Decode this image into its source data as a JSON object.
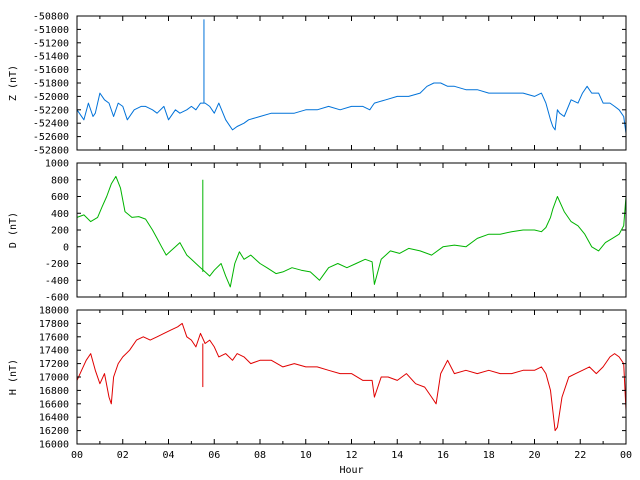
{
  "chart_data": [
    {
      "type": "line",
      "ylabel": "Z (nT)",
      "ylim": [
        -52800,
        -50800
      ],
      "yticks": [
        -50800,
        -51000,
        -51200,
        -51400,
        -51600,
        -51800,
        -52000,
        -52200,
        -52400,
        -52600,
        -52800
      ],
      "xlim": [
        0,
        24
      ],
      "color": "#0072d9",
      "series": [
        {
          "x": [
            0,
            0.3,
            0.5,
            0.7,
            0.8,
            1.0,
            1.2,
            1.4,
            1.6,
            1.8,
            2.0,
            2.2,
            2.5,
            2.8,
            3.0,
            3.3,
            3.5,
            3.8,
            4.0,
            4.3,
            4.5,
            4.8,
            5.0,
            5.2,
            5.4,
            5.6,
            5.8,
            6.0,
            6.2,
            6.5,
            6.8,
            7.0,
            7.3,
            7.5,
            8.0,
            8.5,
            9.0,
            9.5,
            10.0,
            10.5,
            11.0,
            11.5,
            12.0,
            12.5,
            12.8,
            12.9,
            13.0,
            13.5,
            14.0,
            14.5,
            15.0,
            15.3,
            15.6,
            15.9,
            16.2,
            16.5,
            17.0,
            17.5,
            18.0,
            18.5,
            19.0,
            19.5,
            20.0,
            20.3,
            20.5,
            20.7,
            20.8,
            20.9,
            21.0,
            21.1,
            21.3,
            21.6,
            21.9,
            22.1,
            22.3,
            22.5,
            22.8,
            23.0,
            23.3,
            23.5,
            23.7,
            23.9,
            24.0
          ],
          "values": [
            -52200,
            -52350,
            -52100,
            -52300,
            -52250,
            -51950,
            -52050,
            -52100,
            -52300,
            -52100,
            -52150,
            -52350,
            -52200,
            -52150,
            -52150,
            -52200,
            -52250,
            -52150,
            -52350,
            -52200,
            -52250,
            -52200,
            -52150,
            -52200,
            -52100,
            -52100,
            -52150,
            -52250,
            -52100,
            -52350,
            -52500,
            -52450,
            -52400,
            -52350,
            -52300,
            -52250,
            -52250,
            -52250,
            -52200,
            -52200,
            -52150,
            -52200,
            -52150,
            -52150,
            -52200,
            -52150,
            -52100,
            -52050,
            -52000,
            -52000,
            -51950,
            -51850,
            -51800,
            -51800,
            -51850,
            -51850,
            -51900,
            -51900,
            -51950,
            -51950,
            -51950,
            -51950,
            -52000,
            -51950,
            -52100,
            -52350,
            -52450,
            -52500,
            -52200,
            -52250,
            -52300,
            -52050,
            -52100,
            -51950,
            -51850,
            -51950,
            -51950,
            -52100,
            -52100,
            -52150,
            -52200,
            -52300,
            -52550
          ]
        }
      ],
      "spike": {
        "x": 5.55,
        "value": -50850
      }
    },
    {
      "type": "line",
      "ylabel": "D (nT)",
      "ylim": [
        -600,
        1000
      ],
      "yticks": [
        1000,
        800,
        600,
        400,
        200,
        0,
        -200,
        -400,
        -600
      ],
      "xlim": [
        0,
        24
      ],
      "color": "#00b400",
      "series": [
        {
          "x": [
            0,
            0.3,
            0.6,
            0.9,
            1.1,
            1.3,
            1.5,
            1.7,
            1.9,
            2.1,
            2.4,
            2.7,
            3.0,
            3.3,
            3.5,
            3.7,
            3.9,
            4.1,
            4.3,
            4.5,
            4.8,
            5.0,
            5.2,
            5.4,
            5.6,
            5.8,
            6.0,
            6.3,
            6.5,
            6.7,
            6.9,
            7.1,
            7.3,
            7.6,
            8.0,
            8.3,
            8.7,
            9.0,
            9.4,
            9.8,
            10.2,
            10.6,
            11.0,
            11.4,
            11.8,
            12.2,
            12.6,
            12.9,
            13.0,
            13.3,
            13.7,
            14.1,
            14.5,
            15.0,
            15.5,
            16.0,
            16.5,
            17.0,
            17.5,
            18.0,
            18.5,
            19.0,
            19.5,
            20.0,
            20.3,
            20.5,
            20.7,
            20.8,
            21.0,
            21.3,
            21.6,
            21.9,
            22.2,
            22.5,
            22.8,
            23.1,
            23.4,
            23.7,
            23.9,
            24.0
          ],
          "values": [
            350,
            380,
            300,
            350,
            480,
            600,
            750,
            840,
            700,
            420,
            350,
            360,
            330,
            200,
            100,
            0,
            -100,
            -50,
            0,
            50,
            -100,
            -150,
            -200,
            -250,
            -300,
            -350,
            -280,
            -200,
            -350,
            -480,
            -200,
            -60,
            -150,
            -100,
            -200,
            -250,
            -320,
            -300,
            -250,
            -280,
            -300,
            -400,
            -250,
            -200,
            -250,
            -200,
            -150,
            -180,
            -450,
            -150,
            -50,
            -80,
            -20,
            -50,
            -100,
            0,
            20,
            0,
            100,
            150,
            150,
            180,
            200,
            200,
            180,
            230,
            350,
            450,
            600,
            420,
            300,
            250,
            150,
            0,
            -50,
            50,
            100,
            150,
            250,
            600
          ]
        }
      ],
      "spike": {
        "x": 5.5,
        "value": 800
      }
    },
    {
      "type": "line",
      "ylabel": "H (nT)",
      "ylim": [
        16000,
        18000
      ],
      "yticks": [
        18000,
        17800,
        17600,
        17400,
        17200,
        17000,
        16800,
        16600,
        16400,
        16200,
        16000
      ],
      "xlabel": "Hour",
      "xlim": [
        0,
        24
      ],
      "xticks": [
        "00",
        "02",
        "04",
        "06",
        "08",
        "10",
        "12",
        "14",
        "16",
        "18",
        "20",
        "22",
        "00"
      ],
      "color": "#e00000",
      "series": [
        {
          "x": [
            0,
            0.2,
            0.4,
            0.6,
            0.8,
            1.0,
            1.2,
            1.4,
            1.5,
            1.6,
            1.8,
            2.0,
            2.3,
            2.6,
            2.9,
            3.2,
            3.5,
            3.8,
            4.1,
            4.4,
            4.6,
            4.8,
            5.0,
            5.2,
            5.4,
            5.6,
            5.8,
            6.0,
            6.2,
            6.5,
            6.8,
            7.0,
            7.3,
            7.6,
            8.0,
            8.5,
            9.0,
            9.5,
            10.0,
            10.5,
            11.0,
            11.5,
            12.0,
            12.5,
            12.8,
            12.9,
            13.0,
            13.3,
            13.6,
            14.0,
            14.4,
            14.8,
            15.2,
            15.5,
            15.7,
            15.9,
            16.2,
            16.5,
            17.0,
            17.5,
            18.0,
            18.5,
            19.0,
            19.5,
            20.0,
            20.3,
            20.5,
            20.7,
            20.8,
            20.9,
            21.0,
            21.2,
            21.5,
            21.8,
            22.1,
            22.4,
            22.7,
            23.0,
            23.3,
            23.5,
            23.7,
            23.9,
            24.0
          ],
          "values": [
            16950,
            17100,
            17250,
            17350,
            17100,
            16900,
            17050,
            16700,
            16600,
            17000,
            17200,
            17300,
            17400,
            17550,
            17600,
            17550,
            17600,
            17650,
            17700,
            17750,
            17800,
            17600,
            17550,
            17450,
            17650,
            17500,
            17550,
            17450,
            17300,
            17350,
            17250,
            17350,
            17300,
            17200,
            17250,
            17250,
            17150,
            17200,
            17150,
            17150,
            17100,
            17050,
            17050,
            16950,
            16950,
            16950,
            16700,
            17000,
            17000,
            16950,
            17050,
            16900,
            16850,
            16700,
            16600,
            17050,
            17250,
            17050,
            17100,
            17050,
            17100,
            17050,
            17050,
            17100,
            17100,
            17150,
            17050,
            16800,
            16500,
            16200,
            16250,
            16700,
            17000,
            17050,
            17100,
            17150,
            17050,
            17150,
            17300,
            17350,
            17300,
            17200,
            16500
          ]
        }
      ],
      "spike": {
        "x": 5.5,
        "value": 16850
      }
    }
  ]
}
